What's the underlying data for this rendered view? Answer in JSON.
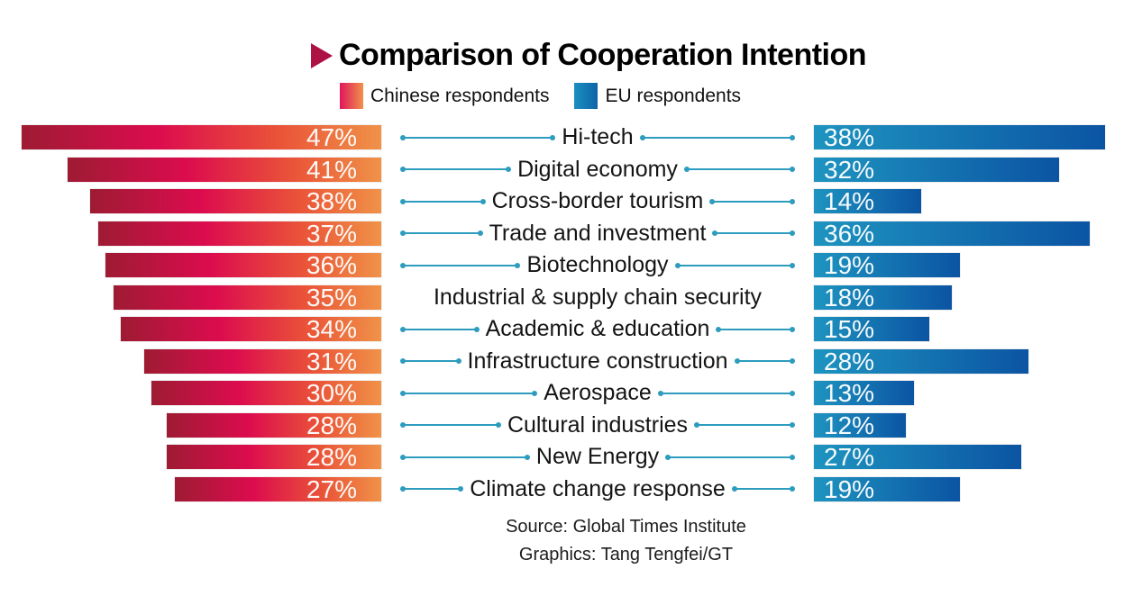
{
  "header": {
    "title": "Comparison of Cooperation Intention",
    "title_marker": "right-pointing-triangle",
    "marker_color": "#ad1245"
  },
  "legend": {
    "items": [
      {
        "label": "Chinese respondents",
        "swatch_gradient": [
          "#e0175c",
          "#f0914a"
        ]
      },
      {
        "label": "EU respondents",
        "swatch_gradient": [
          "#1a90bf",
          "#0e63a8"
        ]
      }
    ]
  },
  "footer": {
    "source_line": "Source: Global Times Institute",
    "graphics_line": "Graphics: Tang Tengfei/GT"
  },
  "colors": {
    "chinese_bar_gradient": [
      "#9e1b33",
      "#dc0c4e",
      "#f09248"
    ],
    "eu_bar_gradient": [
      "#1e94c0",
      "#0b54a3"
    ],
    "connector_line": "#2d9cbe",
    "value_text": "#ffffff",
    "category_text": "#141414"
  },
  "chart_data": {
    "type": "bar",
    "layout": "bidirectional-horizontal",
    "title": "Comparison of Cooperation Intention",
    "unit": "%",
    "value_labels_shown": true,
    "grid": false,
    "legend_position": "top",
    "categories": [
      "Hi-tech",
      "Digital economy",
      "Cross-border tourism",
      "Trade and investment",
      "Biotechnology",
      "Industrial & supply chain security",
      "Academic & education",
      "Infrastructure construction",
      "Aerospace",
      "Cultural industries",
      "New Energy",
      "Climate change response"
    ],
    "series": [
      {
        "name": "Chinese respondents",
        "side": "left",
        "values": [
          47,
          41,
          38,
          37,
          36,
          35,
          34,
          31,
          30,
          28,
          28,
          27
        ]
      },
      {
        "name": "EU respondents",
        "side": "right",
        "values": [
          38,
          32,
          14,
          36,
          19,
          18,
          15,
          28,
          13,
          12,
          27,
          19
        ]
      }
    ],
    "value_range": [
      0,
      47
    ]
  }
}
